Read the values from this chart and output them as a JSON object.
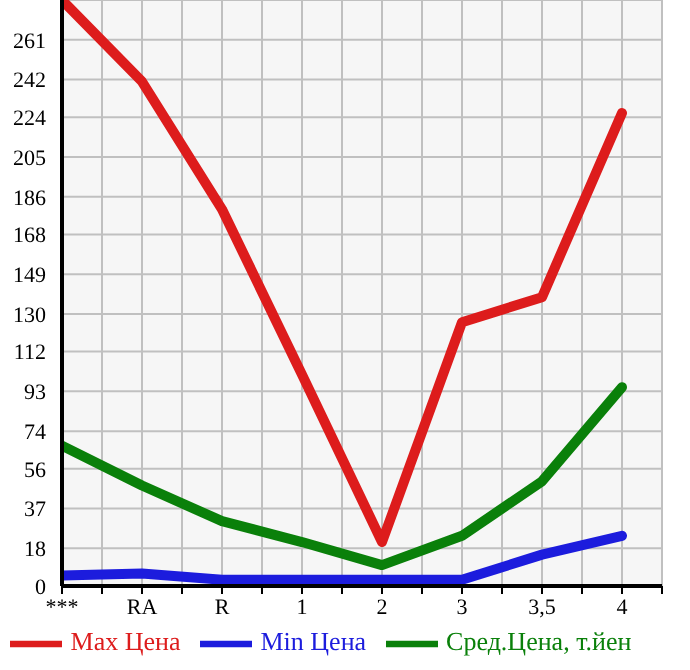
{
  "chart_data": {
    "type": "line",
    "categories": [
      "***",
      "RA",
      "R",
      "1",
      "2",
      "3",
      "3,5",
      "4"
    ],
    "series": [
      {
        "name": "Max Цена",
        "color": "#dd1c1c",
        "values": [
          280,
          241,
          180,
          101,
          21,
          126,
          138,
          226
        ]
      },
      {
        "name": "Min Цена",
        "color": "#1c1cdd",
        "values": [
          5,
          6,
          3,
          3,
          3,
          3,
          15,
          24
        ]
      },
      {
        "name": "Сред.Цена, т.йен",
        "color": "#0a800a",
        "values": [
          67,
          48,
          31,
          21,
          10,
          24,
          50,
          95
        ]
      }
    ],
    "ylim": [
      0,
      280
    ],
    "yticks": [
      0,
      18,
      37,
      56,
      74,
      93,
      112,
      130,
      149,
      168,
      186,
      205,
      224,
      242,
      261,
      {
        "value": 280,
        "label": null
      }
    ],
    "grid": true,
    "legend": "bottom",
    "marker": "none",
    "line_style": "solid"
  }
}
